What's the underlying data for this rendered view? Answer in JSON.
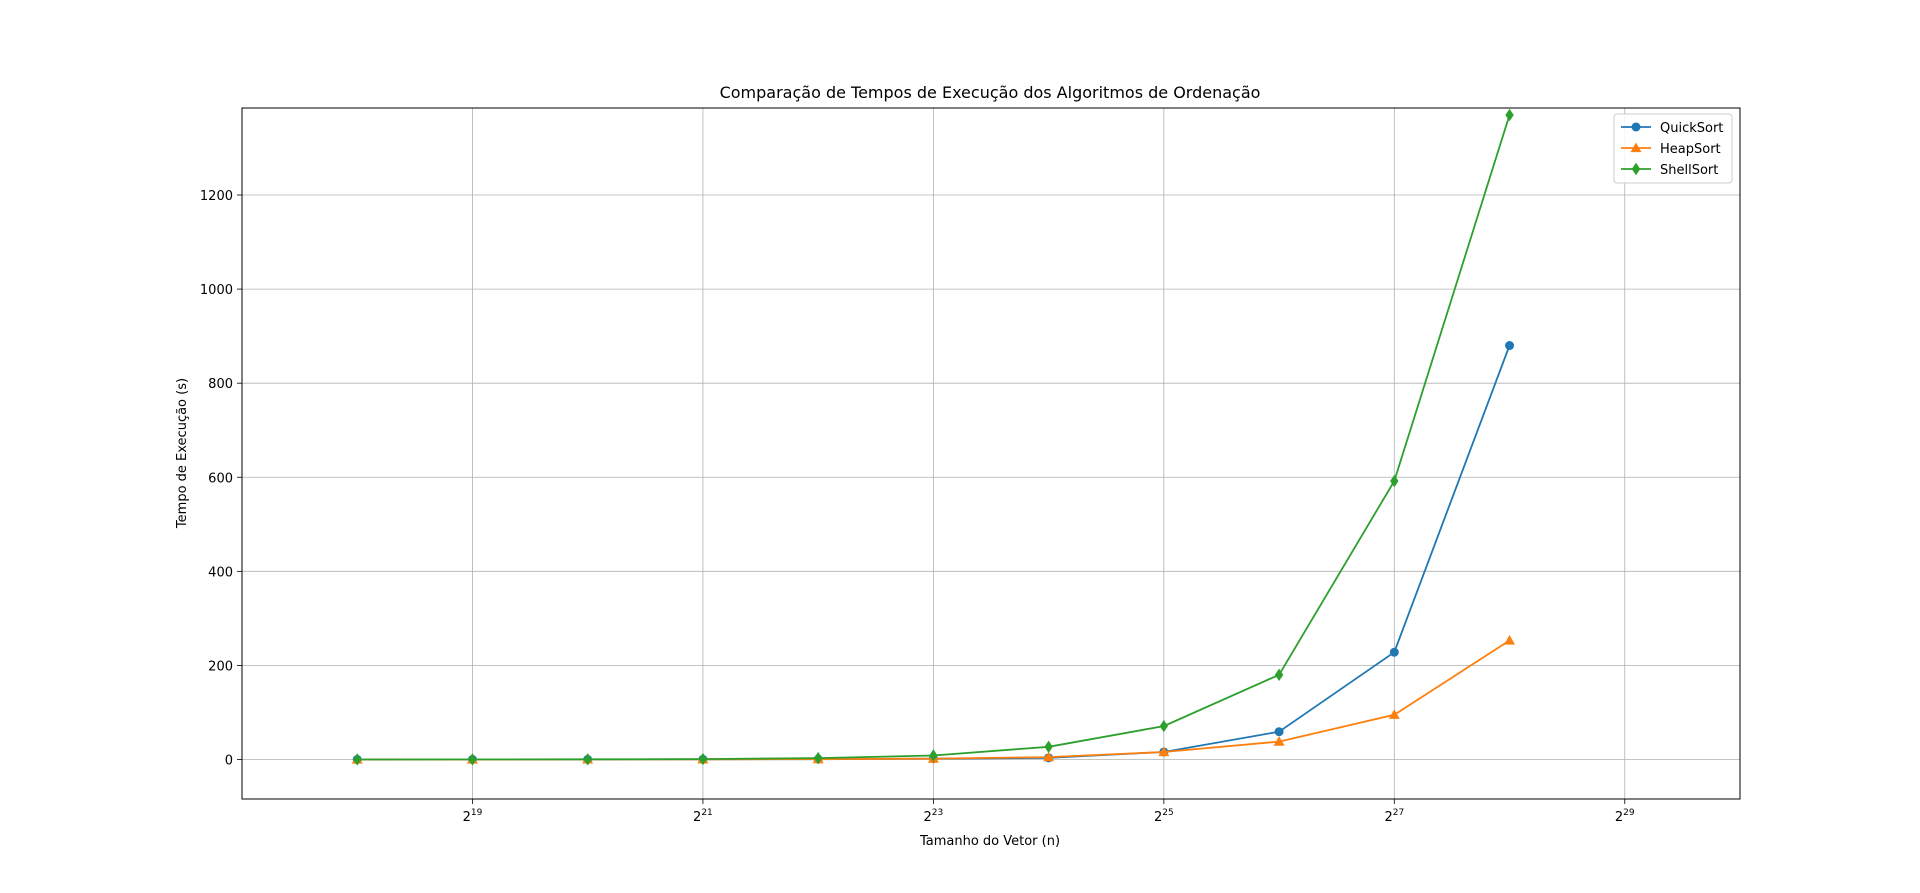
{
  "chart_data": {
    "type": "line",
    "title": "Comparação de Tempos de Execução dos Algoritmos de Ordenação",
    "xlabel": "Tamanho do Vetor (n)",
    "ylabel": "Tempo de Execução (s)",
    "x_scale": "log2",
    "x_ticks": [
      {
        "value": 524288,
        "base": "2",
        "exp": "19"
      },
      {
        "value": 2097152,
        "base": "2",
        "exp": "21"
      },
      {
        "value": 8388608,
        "base": "2",
        "exp": "23"
      },
      {
        "value": 33554432,
        "base": "2",
        "exp": "25"
      },
      {
        "value": 134217728,
        "base": "2",
        "exp": "27"
      },
      {
        "value": 536870912,
        "base": "2",
        "exp": "29"
      }
    ],
    "y_ticks": [
      0,
      200,
      400,
      600,
      800,
      1000,
      1200
    ],
    "xlim": [
      131072,
      1073741824
    ],
    "ylim": [
      -84,
      1385
    ],
    "grid": true,
    "legend_position": "top-right",
    "x": [
      262144,
      524288,
      1048576,
      2097152,
      4194304,
      8388608,
      16777216,
      33554432,
      67108864,
      134217728,
      268435456
    ],
    "series": [
      {
        "name": "QuickSort",
        "color": "#1f77b4",
        "marker": "circle",
        "values": [
          0.03,
          0.06,
          0.14,
          0.3,
          0.7,
          1.6,
          3.5,
          16,
          59,
          228,
          880
        ]
      },
      {
        "name": "HeapSort",
        "color": "#ff7f0e",
        "marker": "triangle",
        "values": [
          0.03,
          0.07,
          0.15,
          0.35,
          0.8,
          1.8,
          5,
          16,
          38,
          95,
          253
        ]
      },
      {
        "name": "ShellSort",
        "color": "#2ca02c",
        "marker": "diamond",
        "values": [
          0.05,
          0.12,
          0.3,
          0.9,
          3,
          8.5,
          27,
          71,
          180,
          592,
          1370
        ]
      }
    ]
  }
}
